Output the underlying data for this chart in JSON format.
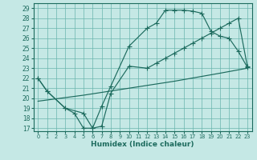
{
  "xlabel": "Humidex (Indice chaleur)",
  "bg_color": "#c5e8e5",
  "grid_color": "#6ab5ae",
  "line_color": "#1d6b5e",
  "xlim": [
    -0.5,
    23.5
  ],
  "ylim": [
    16.7,
    29.5
  ],
  "xticks": [
    0,
    1,
    2,
    3,
    4,
    5,
    6,
    7,
    8,
    9,
    10,
    11,
    12,
    13,
    14,
    15,
    16,
    17,
    18,
    19,
    20,
    21,
    22,
    23
  ],
  "yticks": [
    17,
    18,
    19,
    20,
    21,
    22,
    23,
    24,
    25,
    26,
    27,
    28,
    29
  ],
  "curve1_x": [
    0,
    1,
    3,
    4,
    5,
    6,
    7,
    8,
    10,
    12,
    13,
    14,
    15,
    16,
    17,
    18,
    19,
    20,
    21,
    22,
    23
  ],
  "curve1_y": [
    22,
    20.7,
    19,
    18.5,
    17,
    17,
    19.2,
    21.2,
    25.2,
    27.0,
    27.5,
    28.8,
    28.8,
    28.8,
    28.7,
    28.5,
    26.7,
    26.2,
    26.0,
    24.7,
    23.1
  ],
  "curve2_x": [
    0,
    1,
    3,
    5,
    6,
    7,
    8,
    10,
    12,
    13,
    14,
    15,
    16,
    17,
    18,
    19,
    20,
    21,
    22,
    23
  ],
  "curve2_y": [
    22,
    20.7,
    19,
    18.5,
    17,
    17.2,
    20.5,
    23.2,
    23.0,
    23.5,
    24.0,
    24.5,
    25.0,
    25.5,
    26.0,
    26.5,
    27.0,
    27.5,
    28.0,
    23.2
  ],
  "line3_x": [
    0,
    5,
    10,
    15,
    20,
    23
  ],
  "line3_y": [
    19.7,
    20.3,
    21.0,
    21.7,
    22.5,
    23.0
  ]
}
